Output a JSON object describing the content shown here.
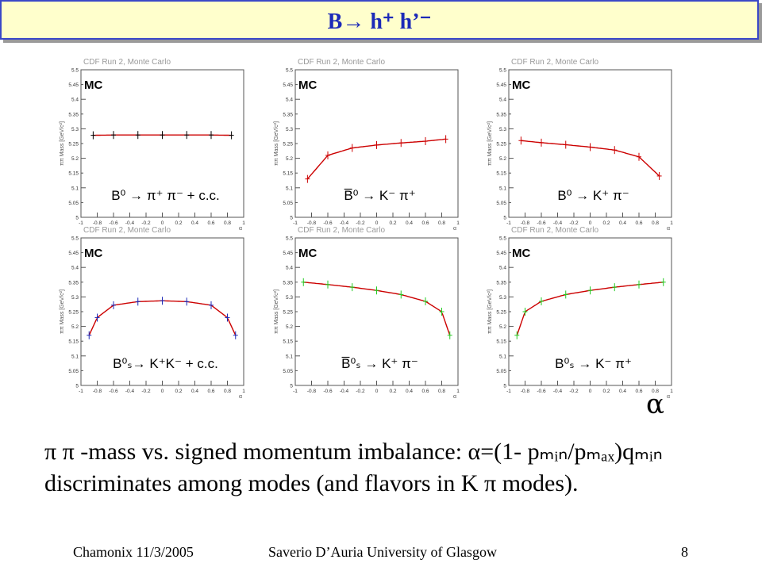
{
  "slide": {
    "title": "B→ h⁺ h’⁻",
    "x_axis_symbol": "α",
    "caption_line1": "π π -mass vs. signed momentum imbalance: α=(1- pₘᵢₙ/pₘₐₓ)qₘᵢₙ",
    "caption_line2": "discriminates among modes (and flavors in K π modes).",
    "footer_left": "Chamonix 11/3/2005",
    "footer_center": "Saverio D’Auria University of Glasgow",
    "footer_right": "8"
  },
  "plot_common": {
    "header": "CDF Run 2, Monte Carlo",
    "mc_label": "MC",
    "ylabel": "ππ Mass [GeV/c²]",
    "xlabel": "α",
    "y_ticks": [
      "5",
      "5.05",
      "5.1",
      "5.15",
      "5.2",
      "5.25",
      "5.3",
      "5.35",
      "5.4",
      "5.45",
      "5.5"
    ],
    "x_ticks": [
      "-1",
      "-0.8",
      "-0.6",
      "-0.4",
      "-0.2",
      "0",
      "0.2",
      "0.4",
      "0.6",
      "0.8",
      "1"
    ]
  },
  "chart_data": [
    {
      "type": "scatter",
      "mode_label": "B⁰ → π⁺ π⁻ + c.c.",
      "xlim": [
        -1,
        1
      ],
      "ylim": [
        5.0,
        5.5
      ],
      "points_color": "#000000",
      "fit_color": "#cc0000",
      "x": [
        -0.85,
        -0.6,
        -0.3,
        0.0,
        0.3,
        0.6,
        0.85
      ],
      "y": [
        5.278,
        5.279,
        5.279,
        5.279,
        5.279,
        5.279,
        5.278
      ]
    },
    {
      "type": "scatter",
      "mode_label": "B̅⁰ → K⁻ π⁺",
      "xlim": [
        -1,
        1
      ],
      "ylim": [
        5.0,
        5.5
      ],
      "points_color": "#cc0000",
      "fit_color": "#cc0000",
      "x": [
        -0.85,
        -0.6,
        -0.3,
        0.0,
        0.3,
        0.6,
        0.85
      ],
      "y": [
        5.13,
        5.21,
        5.235,
        5.245,
        5.252,
        5.258,
        5.265
      ]
    },
    {
      "type": "scatter",
      "mode_label": "B⁰ → K⁺ π⁻",
      "xlim": [
        -1,
        1
      ],
      "ylim": [
        5.0,
        5.5
      ],
      "points_color": "#cc0000",
      "fit_color": "#cc0000",
      "x": [
        -0.85,
        -0.6,
        -0.3,
        0.0,
        0.3,
        0.6,
        0.85
      ],
      "y": [
        5.26,
        5.253,
        5.246,
        5.238,
        5.228,
        5.205,
        5.14
      ]
    },
    {
      "type": "scatter",
      "mode_label": "B⁰ₛ→ K⁺K⁻ + c.c.",
      "xlim": [
        -1,
        1
      ],
      "ylim": [
        5.0,
        5.5
      ],
      "points_color": "#1c2ab8",
      "fit_color": "#cc0000",
      "x": [
        -0.9,
        -0.8,
        -0.6,
        -0.3,
        0.0,
        0.3,
        0.6,
        0.8,
        0.9
      ],
      "y": [
        5.17,
        5.23,
        5.272,
        5.284,
        5.287,
        5.284,
        5.272,
        5.23,
        5.17
      ]
    },
    {
      "type": "scatter",
      "mode_label": "B̅⁰ₛ → K⁺ π⁻",
      "xlim": [
        -1,
        1
      ],
      "ylim": [
        5.0,
        5.5
      ],
      "points_color": "#22cc22",
      "fit_color": "#cc0000",
      "x": [
        -0.9,
        -0.6,
        -0.3,
        0.0,
        0.3,
        0.6,
        0.8,
        0.9
      ],
      "y": [
        5.35,
        5.342,
        5.333,
        5.322,
        5.308,
        5.285,
        5.25,
        5.17
      ]
    },
    {
      "type": "scatter",
      "mode_label": "B⁰ₛ → K⁻ π⁺",
      "xlim": [
        -1,
        1
      ],
      "ylim": [
        5.0,
        5.5
      ],
      "points_color": "#22cc22",
      "fit_color": "#cc0000",
      "x": [
        -0.9,
        -0.8,
        -0.6,
        -0.3,
        0.0,
        0.3,
        0.6,
        0.9
      ],
      "y": [
        5.17,
        5.25,
        5.285,
        5.308,
        5.322,
        5.333,
        5.342,
        5.35
      ]
    }
  ]
}
